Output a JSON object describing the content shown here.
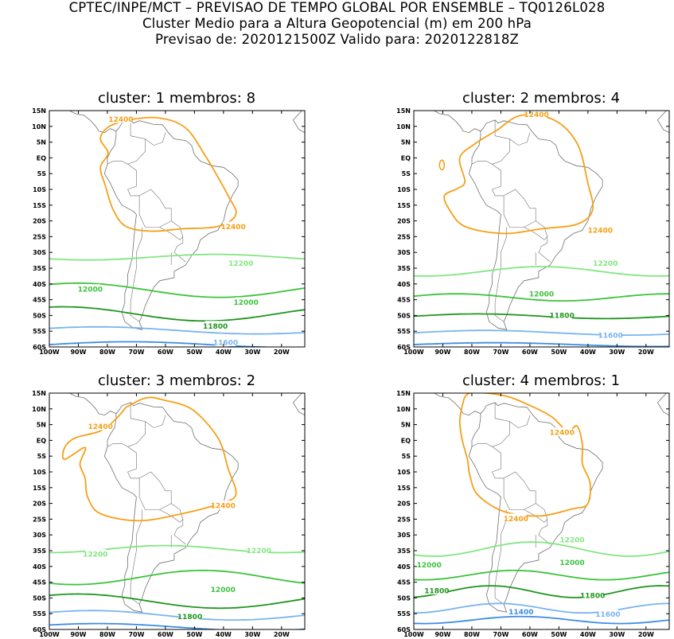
{
  "header": {
    "line1": "CPTEC/INPE/MCT – PREVISAO DE TEMPO GLOBAL POR ENSEMBLE – TQ0126L028",
    "line2": "Cluster Medio para a Altura Geopotencial (m) em 200 hPa",
    "line3": "Previsao de: 2020121500Z    Valido para: 2020122818Z"
  },
  "lat_ticks": [
    "15N",
    "10N",
    "5N",
    "EQ",
    "5S",
    "10S",
    "15S",
    "20S",
    "25S",
    "30S",
    "35S",
    "40S",
    "45S",
    "50S",
    "55S",
    "60S"
  ],
  "lon_ticks": [
    "100W",
    "90W",
    "80W",
    "70W",
    "60W",
    "50W",
    "40W",
    "30W",
    "20W"
  ],
  "colors": {
    "c12400": "#f5a018",
    "c12200": "#82e682",
    "c12000": "#3cc33c",
    "c11800": "#1e961e",
    "c11600": "#78b4f0",
    "c11400": "#3c8ce6",
    "coast": "#707070"
  },
  "panels": [
    {
      "title": "cluster: 1   membros: 8",
      "labels": [
        {
          "text": "12400",
          "color": "c12400"
        },
        {
          "text": "12400",
          "color": "c12400"
        },
        {
          "text": "12200",
          "color": "c12200"
        },
        {
          "text": "12000",
          "color": "c12000"
        },
        {
          "text": "12000",
          "color": "c12000"
        },
        {
          "text": "11800",
          "color": "c11800"
        },
        {
          "text": "11600",
          "color": "c11600"
        }
      ]
    },
    {
      "title": "cluster: 2   membros: 4",
      "labels": [
        {
          "text": "12400",
          "color": "c12400"
        },
        {
          "text": "12400",
          "color": "c12400"
        },
        {
          "text": "12200",
          "color": "c12200"
        },
        {
          "text": "12000",
          "color": "c12000"
        },
        {
          "text": "11800",
          "color": "c11800"
        },
        {
          "text": "11600",
          "color": "c11600"
        }
      ]
    },
    {
      "title": "cluster: 3   membros: 2",
      "labels": [
        {
          "text": "12400",
          "color": "c12400"
        },
        {
          "text": "12400",
          "color": "c12400"
        },
        {
          "text": "12200",
          "color": "c12200"
        },
        {
          "text": "12200",
          "color": "c12200"
        },
        {
          "text": "12000",
          "color": "c12000"
        },
        {
          "text": "11800",
          "color": "c11800"
        }
      ]
    },
    {
      "title": "cluster: 4   membros: 1",
      "labels": [
        {
          "text": "12400",
          "color": "c12400"
        },
        {
          "text": "12400",
          "color": "c12400"
        },
        {
          "text": "12200",
          "color": "c12200"
        },
        {
          "text": "12000",
          "color": "c12000"
        },
        {
          "text": "12000",
          "color": "c12000"
        },
        {
          "text": "11800",
          "color": "c11800"
        },
        {
          "text": "11800",
          "color": "c11800"
        },
        {
          "text": "11400",
          "color": "c11400"
        },
        {
          "text": "11600",
          "color": "c11600"
        }
      ]
    }
  ]
}
